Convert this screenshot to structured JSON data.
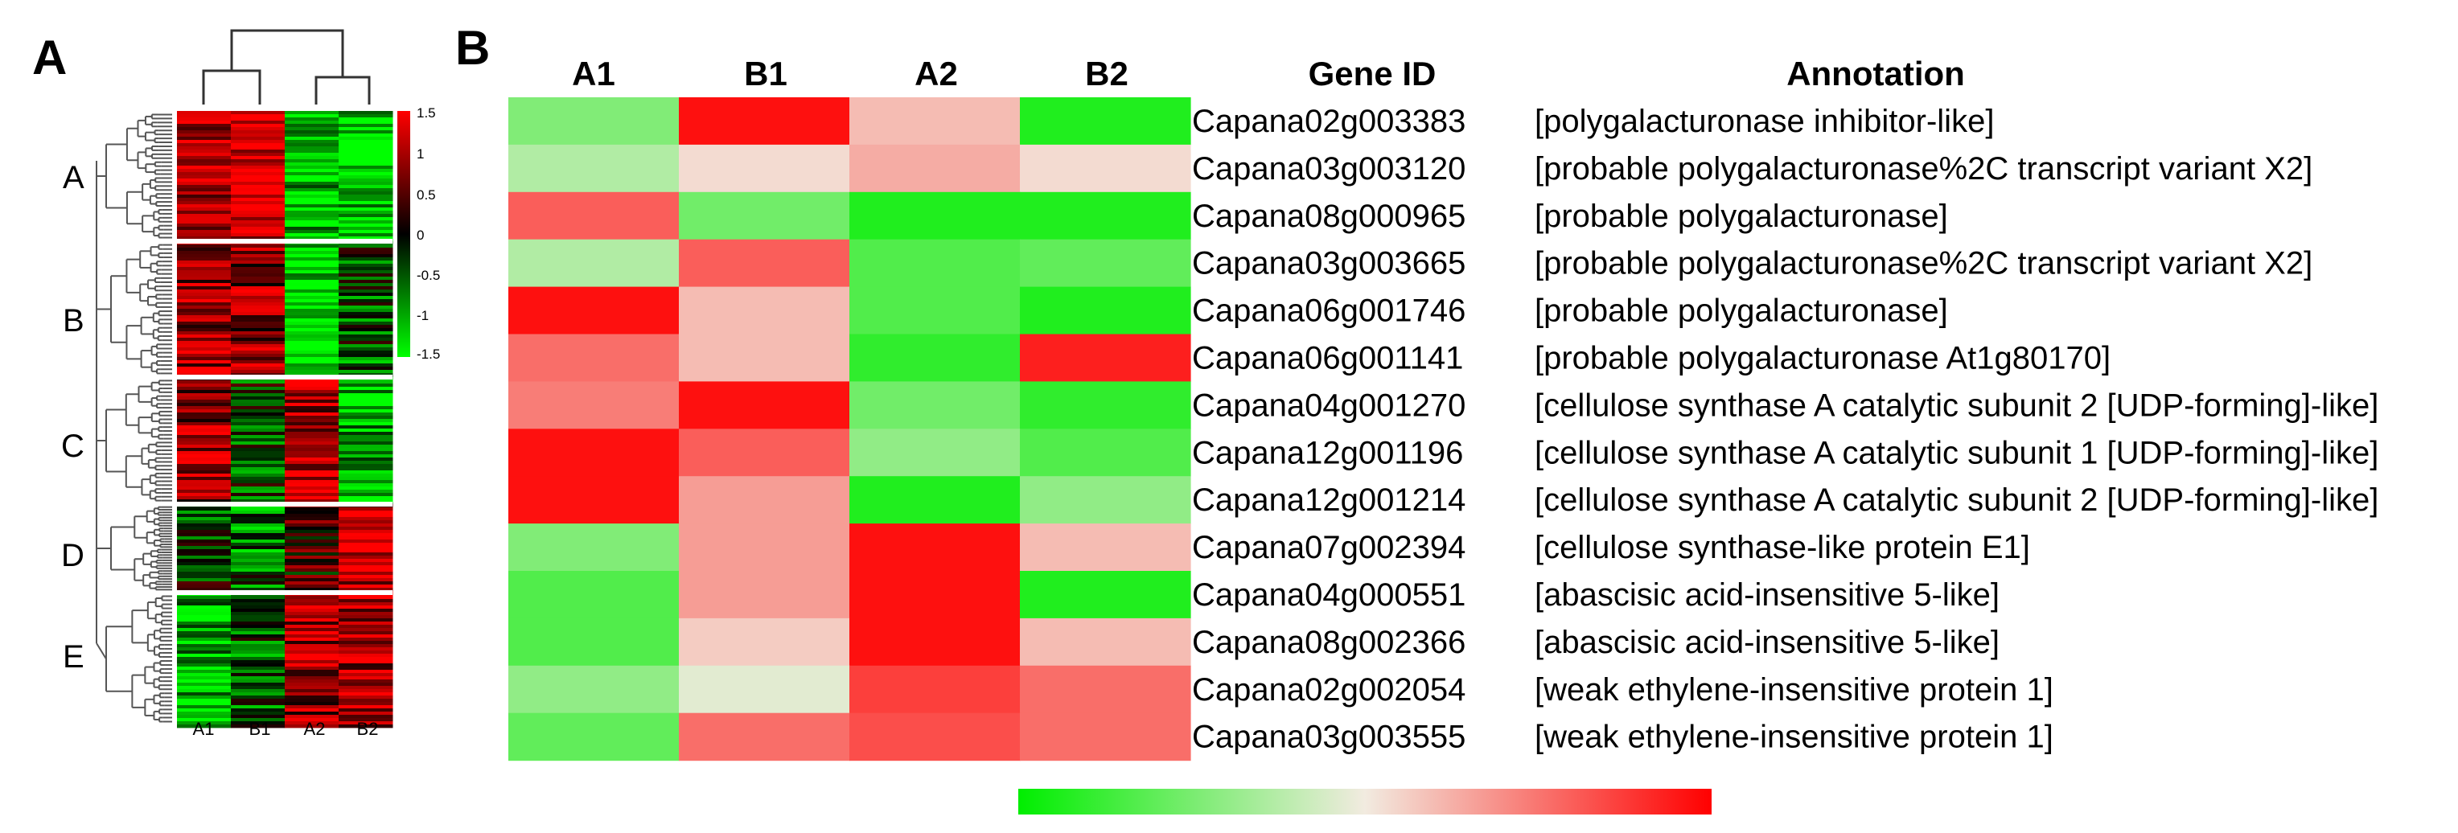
{
  "colors": {
    "low": "#00ee00",
    "mid": "#f2ebe0",
    "high": "#ff0000"
  },
  "panel_a": {
    "letter": "A",
    "samples": [
      "A1",
      "B1",
      "A2",
      "B2"
    ],
    "clusters": [
      "A",
      "B",
      "C",
      "D",
      "E"
    ],
    "colorbar_ticks": [
      "1.5",
      "1",
      "0.5",
      "0",
      "-0.5",
      "-1",
      "-1.5"
    ],
    "cluster_profiles": [
      [
        0.7,
        0.9,
        -0.8,
        -0.9
      ],
      [
        0.6,
        0.5,
        -0.9,
        -0.3
      ],
      [
        0.6,
        -0.2,
        0.7,
        -0.7
      ],
      [
        -0.2,
        -0.4,
        0.2,
        0.8
      ],
      [
        -0.7,
        -0.3,
        0.6,
        0.7
      ]
    ]
  },
  "panel_b": {
    "letter": "B",
    "gene_id_header": "Gene ID",
    "annotation_header": "Annotation"
  },
  "chart_data": {
    "type": "heatmap",
    "columns": [
      "A1",
      "B1",
      "A2",
      "B2"
    ],
    "colorscale_range": [
      -1.5,
      1.5
    ],
    "rows": [
      {
        "gene_id": "Capana02g003383",
        "annotation": "[polygalacturonase inhibitor-like]",
        "values": [
          -0.7,
          1.4,
          0.3,
          -1.3
        ]
      },
      {
        "gene_id": "Capana03g003120",
        "annotation": "[probable polygalacturonase%2C transcript variant X2]",
        "values": [
          -0.4,
          0.1,
          0.4,
          0.1
        ]
      },
      {
        "gene_id": "Capana08g000965",
        "annotation": "[probable polygalacturonase]",
        "values": [
          0.9,
          -0.8,
          -1.3,
          -1.3
        ]
      },
      {
        "gene_id": "Capana03g003665",
        "annotation": "[probable polygalacturonase%2C transcript variant X2]",
        "values": [
          -0.4,
          0.9,
          -1.0,
          -0.9
        ]
      },
      {
        "gene_id": "Capana06g001746",
        "annotation": "[probable polygalacturonase]",
        "values": [
          1.4,
          0.3,
          -1.0,
          -1.3
        ]
      },
      {
        "gene_id": "Capana06g001141",
        "annotation": "[probable polygalacturonase At1g80170]",
        "values": [
          0.8,
          0.3,
          -1.2,
          1.3
        ]
      },
      {
        "gene_id": "Capana04g001270",
        "annotation": "[cellulose synthase A catalytic subunit 2 [UDP-forming]-like]",
        "values": [
          0.7,
          1.4,
          -0.8,
          -1.2
        ]
      },
      {
        "gene_id": "Capana12g001196",
        "annotation": "[cellulose synthase A catalytic subunit 1 [UDP-forming]-like]",
        "values": [
          1.4,
          0.9,
          -0.6,
          -1.0
        ]
      },
      {
        "gene_id": "Capana12g001214",
        "annotation": "[cellulose synthase A catalytic subunit 2 [UDP-forming]-like]",
        "values": [
          1.4,
          0.5,
          -1.3,
          -0.6
        ]
      },
      {
        "gene_id": "Capana07g002394",
        "annotation": "[cellulose synthase-like protein E1]",
        "values": [
          -0.7,
          0.5,
          1.4,
          0.3
        ]
      },
      {
        "gene_id": "Capana04g000551",
        "annotation": "[abascisic acid-insensitive 5-like]",
        "values": [
          -1.0,
          0.5,
          1.4,
          -1.3
        ]
      },
      {
        "gene_id": "Capana08g002366",
        "annotation": "[abascisic acid-insensitive 5-like]",
        "values": [
          -1.0,
          0.2,
          1.4,
          0.3
        ]
      },
      {
        "gene_id": "Capana02g002054",
        "annotation": "[weak ethylene-insensitive protein 1]",
        "values": [
          -0.6,
          -0.1,
          1.1,
          0.8
        ]
      },
      {
        "gene_id": "Capana03g003555",
        "annotation": "[weak ethylene-insensitive protein 1]",
        "values": [
          -0.9,
          0.8,
          1.0,
          0.8
        ]
      }
    ]
  }
}
